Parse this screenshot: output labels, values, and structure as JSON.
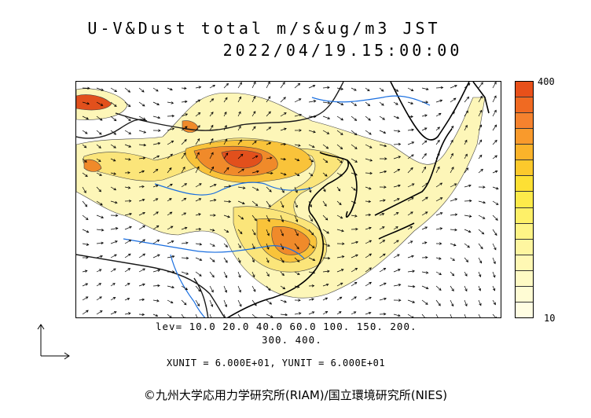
{
  "title": {
    "line1": "U-V&Dust total m/s&ug/m3 JST",
    "line2": "2022/04/19.15:00:00"
  },
  "colorbar": {
    "max_label": "400",
    "min_label": "10",
    "colors": [
      "#e8501a",
      "#f06a22",
      "#f5822e",
      "#f99a2c",
      "#fbb32a",
      "#fcc92c",
      "#fde034",
      "#fdea4a",
      "#fef068",
      "#fef486",
      "#fef6a0",
      "#fff8b4",
      "#fffac4",
      "#fffcd4",
      "#fffde2"
    ]
  },
  "levels": {
    "line1": "lev= 10.0 20.0 40.0 60.0 100. 150. 200.",
    "line2": "300. 400."
  },
  "units": "XUNIT = 6.000E+01, YUNIT = 6.000E+01",
  "copyright": "©九州大学応用力学研究所(RIAM)/国立環境研究所(NIES)",
  "map_colors": {
    "low": "#fdf6b8",
    "mid": "#fbe57a",
    "high": "#f9c33a",
    "very_high": "#f08a2a",
    "extreme": "#e2501c",
    "river": "#1a6fe0",
    "coast": "#000000",
    "border": "#1a1a1a"
  }
}
